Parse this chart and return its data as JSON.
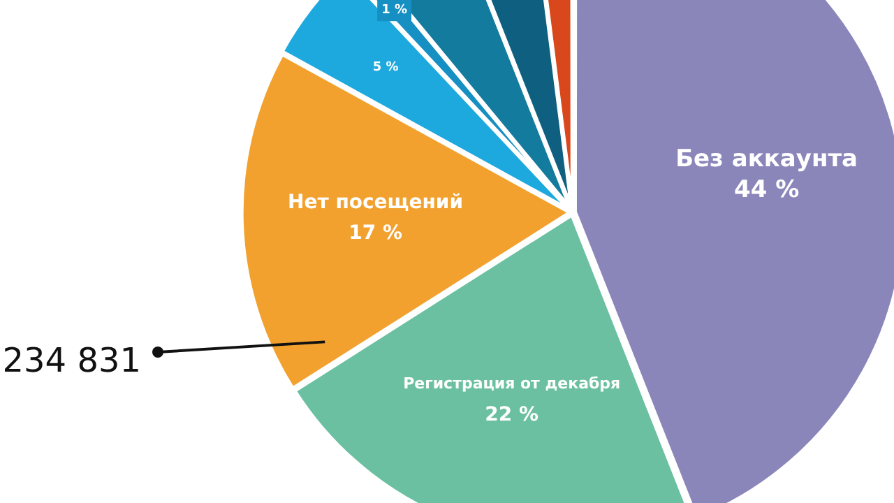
{
  "chart_data": {
    "type": "pie",
    "categories": [
      "Без аккаунта",
      "Регистрация от декабря",
      "Нет посещений",
      null,
      null,
      null,
      null,
      null
    ],
    "values": [
      44,
      22,
      17,
      5,
      1,
      5,
      4,
      2
    ],
    "value_labels": [
      "44 %",
      "22 %",
      "17 %",
      "5 %",
      "1 %",
      null,
      null,
      null
    ],
    "colors": [
      "#8a86ba",
      "#6cc0a2",
      "#f2a12e",
      "#1ea9de",
      "#168fc2",
      "#137b9e",
      "#0f5f80",
      "#d9481c"
    ],
    "annotations": [
      {
        "text": "234 831",
        "x": "Нет посещений"
      }
    ],
    "legend": false
  }
}
